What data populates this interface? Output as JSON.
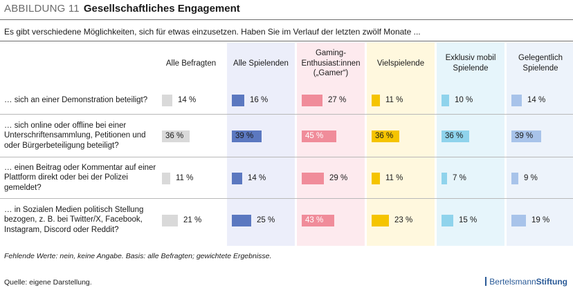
{
  "header": {
    "figure_label": "ABBILDUNG 11",
    "title": "Gesellschaftliches Engagement"
  },
  "subtitle": "Es gibt verschiedene Möglichkeiten, sich für etwas einzusetzen. Haben Sie im Verlauf der letzten zwölf Monate ...",
  "footnote": "Fehlende Werte: nein, keine Angabe. Basis: alle Befragten; gewichtete Ergebnisse.",
  "source": "Quelle: eigene Darstellung.",
  "logo": {
    "part1": "Bertelsmann",
    "part2": "Stiftung"
  },
  "chart_data": {
    "type": "bar",
    "unit": "%",
    "xlim": [
      0,
      100
    ],
    "categories": [
      "… sich an einer Demonstration beteiligt?",
      "… sich online oder offline bei einer Unterschriftensammlung, Petitionen und oder Bürgerbeteiligung beteiligt?",
      "… einen Beitrag oder Kommentar auf einer Plattform direkt oder bei der Polizei gemeldet?",
      "… in Sozialen Medien politisch Stellung bezogen, z. B. bei Twitter/X, Facebook, Instagram, Discord oder Reddit?"
    ],
    "series": [
      {
        "name": "Alle Befragten",
        "color": "#d9d9d9",
        "bg": "#ffffff",
        "label_color": "#1a1a1a",
        "values": [
          14,
          36,
          11,
          21
        ]
      },
      {
        "name": "Alle Spielenden",
        "color": "#5b78c0",
        "bg": "#eceefa",
        "label_color": "#1a1a1a",
        "values": [
          16,
          39,
          14,
          25
        ]
      },
      {
        "name": "Gaming-Enthusiast:innen („Gamer“)",
        "color": "#f08c9a",
        "bg": "#fdeaee",
        "label_color": "#ffffff",
        "values": [
          27,
          45,
          29,
          43
        ]
      },
      {
        "name": "Vielspielende",
        "color": "#f5c400",
        "bg": "#fff8de",
        "label_color": "#1a1a1a",
        "values": [
          11,
          36,
          11,
          23
        ]
      },
      {
        "name": "Exklusiv mobil Spielende",
        "color": "#8fd3ec",
        "bg": "#e6f5fb",
        "label_color": "#1a1a1a",
        "values": [
          10,
          36,
          7,
          15
        ]
      },
      {
        "name": "Gelegentlich Spielende",
        "color": "#a8c3ea",
        "bg": "#edf3fb",
        "label_color": "#1a1a1a",
        "values": [
          14,
          39,
          9,
          19
        ]
      }
    ]
  }
}
